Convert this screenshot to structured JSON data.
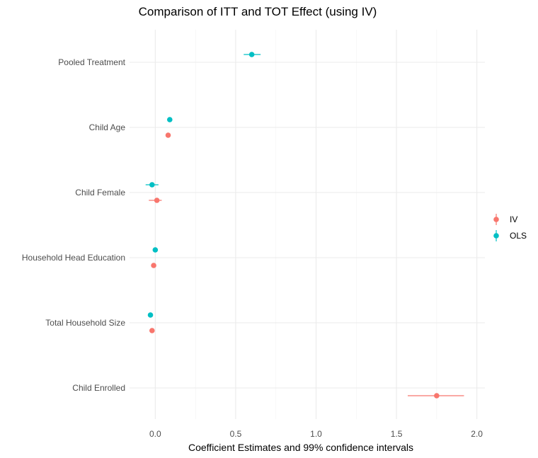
{
  "chart_data": {
    "type": "scatter",
    "title": "Comparison of ITT and TOT Effect (using IV)",
    "xlabel": "Coefficient Estimates and 99% confidence intervals",
    "ylabel": "",
    "xlim": [
      -0.16,
      2.05
    ],
    "x_ticks": [
      0.0,
      0.5,
      1.0,
      1.5,
      2.0
    ],
    "x_tick_labels": [
      "0.0",
      "0.5",
      "1.0",
      "1.5",
      "2.0"
    ],
    "categories": [
      "Pooled Treatment",
      "Child Age",
      "Child Female",
      "Household Head Education",
      "Total Household Size",
      "Child Enrolled"
    ],
    "grid": true,
    "legend_position": "right",
    "series": [
      {
        "name": "IV",
        "color": "#F8766D",
        "points": [
          {
            "category": "Child Age",
            "estimate": 0.08,
            "lower": 0.065,
            "upper": 0.095
          },
          {
            "category": "Child Female",
            "estimate": 0.01,
            "lower": -0.04,
            "upper": 0.04
          },
          {
            "category": "Household Head Education",
            "estimate": -0.01,
            "lower": -0.02,
            "upper": 0.0
          },
          {
            "category": "Total Household Size",
            "estimate": -0.02,
            "lower": -0.035,
            "upper": -0.005
          },
          {
            "category": "Child Enrolled",
            "estimate": 1.75,
            "lower": 1.57,
            "upper": 1.92
          }
        ]
      },
      {
        "name": "OLS",
        "color": "#00BFC4",
        "points": [
          {
            "category": "Pooled Treatment",
            "estimate": 0.6,
            "lower": 0.55,
            "upper": 0.655
          },
          {
            "category": "Child Age",
            "estimate": 0.09,
            "lower": 0.08,
            "upper": 0.1
          },
          {
            "category": "Child Female",
            "estimate": -0.02,
            "lower": -0.06,
            "upper": 0.02
          },
          {
            "category": "Household Head Education",
            "estimate": 0.0,
            "lower": -0.01,
            "upper": 0.01
          },
          {
            "category": "Total Household Size",
            "estimate": -0.03,
            "lower": -0.04,
            "upper": -0.02
          }
        ]
      }
    ]
  }
}
